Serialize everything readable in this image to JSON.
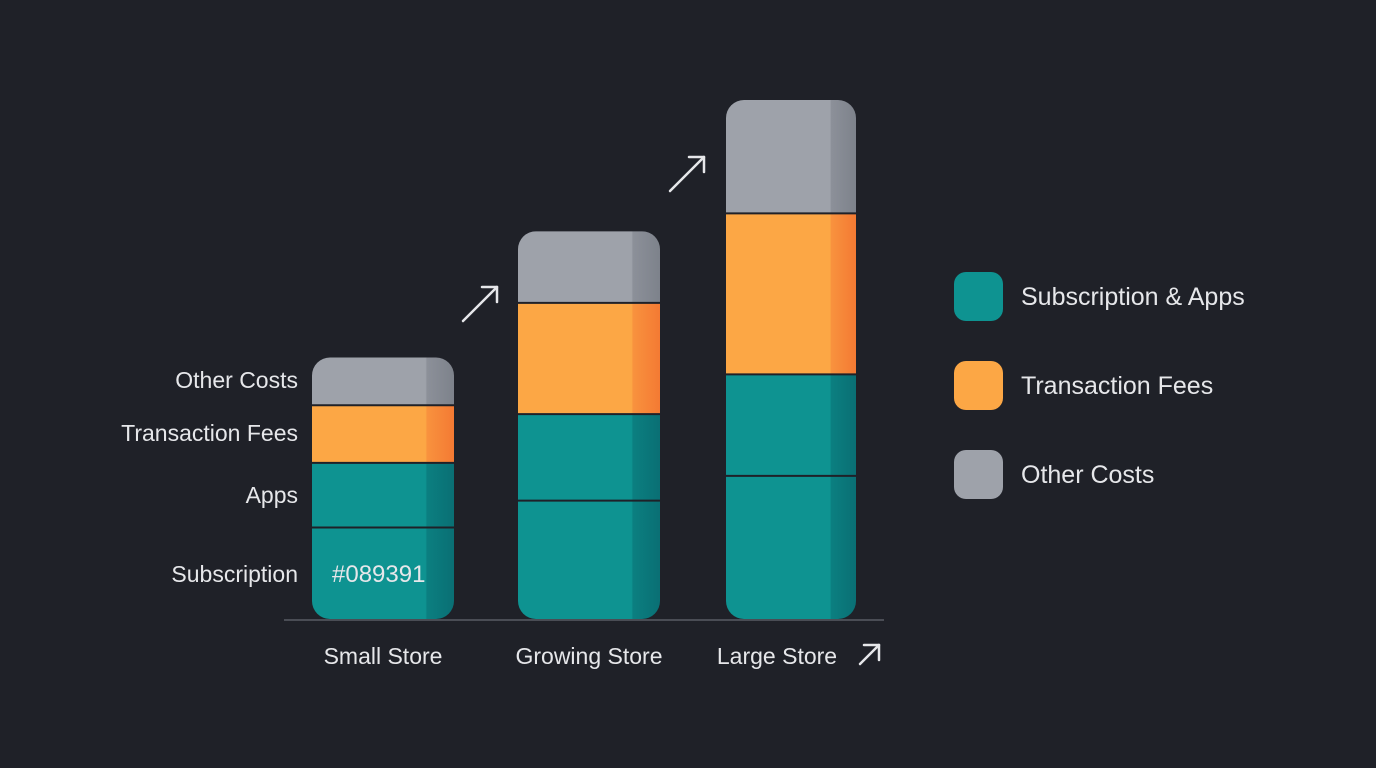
{
  "colors": {
    "background": "#1f2128",
    "subscription": "#0e9391",
    "apps": "#0e9391",
    "transaction": "#fca745",
    "transaction_edge": "#f6873a",
    "other": "#9ea2aa",
    "divider": "#1f2128",
    "text": "#e6e7ea",
    "axis": "#4a4d55"
  },
  "chart_data": {
    "type": "bar",
    "stacked": true,
    "categories": [
      "Small Store",
      "Growing Store",
      "Large Store"
    ],
    "series": [
      {
        "key": "subscription",
        "values": [
          92,
          119,
          144
        ]
      },
      {
        "key": "apps",
        "values": [
          65,
          87,
          102
        ]
      },
      {
        "key": "transaction",
        "values": [
          58,
          112,
          162
        ]
      },
      {
        "key": "other",
        "values": [
          48,
          72,
          114
        ]
      }
    ],
    "ylim": [
      0,
      525
    ],
    "segment_labels": [
      "Subscription",
      "Apps",
      "Transaction Fees",
      "Other Costs"
    ],
    "bar_annotation": "#089391",
    "legend": {
      "position": "right",
      "entries": [
        {
          "label": "Subscription & Apps",
          "color_key": "subscription"
        },
        {
          "label": "Transaction Fees",
          "color_key": "transaction"
        },
        {
          "label": "Other Costs",
          "color_key": "other"
        }
      ]
    },
    "growth_arrows": true,
    "grid": false
  }
}
